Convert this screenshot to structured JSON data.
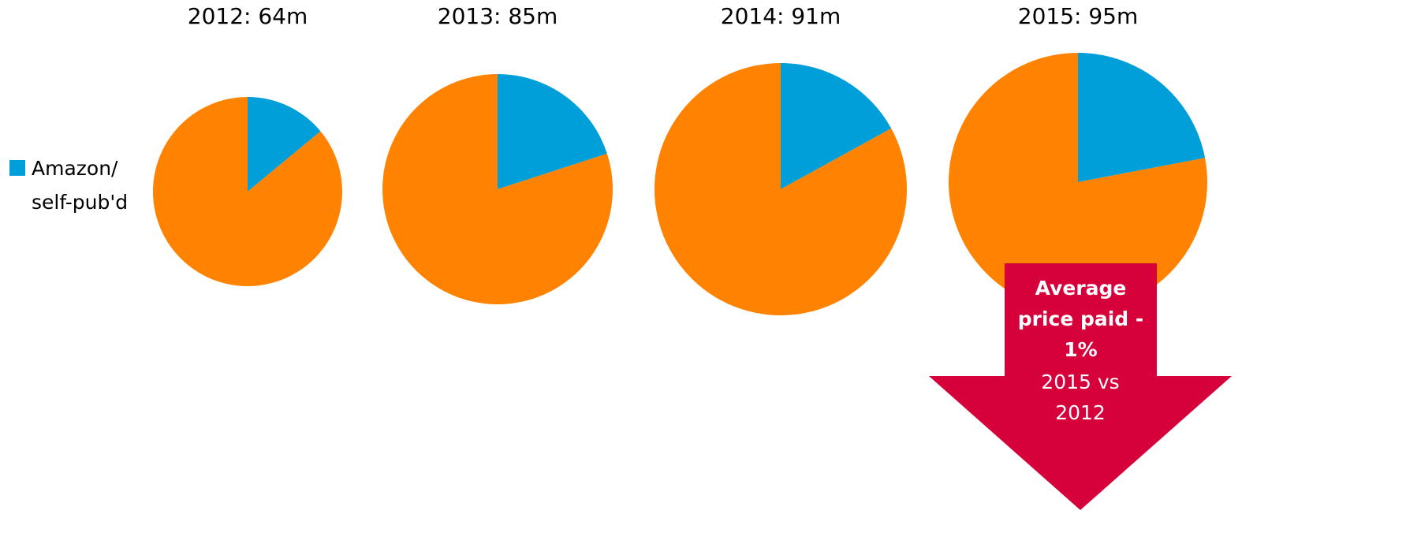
{
  "chart_data": [
    {
      "type": "pie",
      "title": "2012: 64m",
      "categories": [
        "Amazon/ self-pub'd",
        null
      ],
      "values": [
        14,
        86
      ],
      "colors": [
        "#009fda",
        "#ff8300"
      ]
    },
    {
      "type": "pie",
      "title": "2013: 85m",
      "categories": [
        "Amazon/ self-pub'd",
        null
      ],
      "values": [
        20,
        80
      ],
      "colors": [
        "#009fda",
        "#ff8300"
      ]
    },
    {
      "type": "pie",
      "title": "2014: 91m",
      "categories": [
        "Amazon/ self-pub'd",
        null
      ],
      "values": [
        17,
        83
      ],
      "colors": [
        "#009fda",
        "#ff8300"
      ]
    },
    {
      "type": "pie",
      "title": "2015: 95m",
      "categories": [
        "Amazon/ self-pub'd",
        null
      ],
      "values": [
        22,
        78
      ],
      "colors": [
        "#009fda",
        "#ff8300"
      ],
      "annotation": {
        "title": "Average price paid - 1%",
        "text": "2015 vs 2012"
      }
    }
  ]
}
